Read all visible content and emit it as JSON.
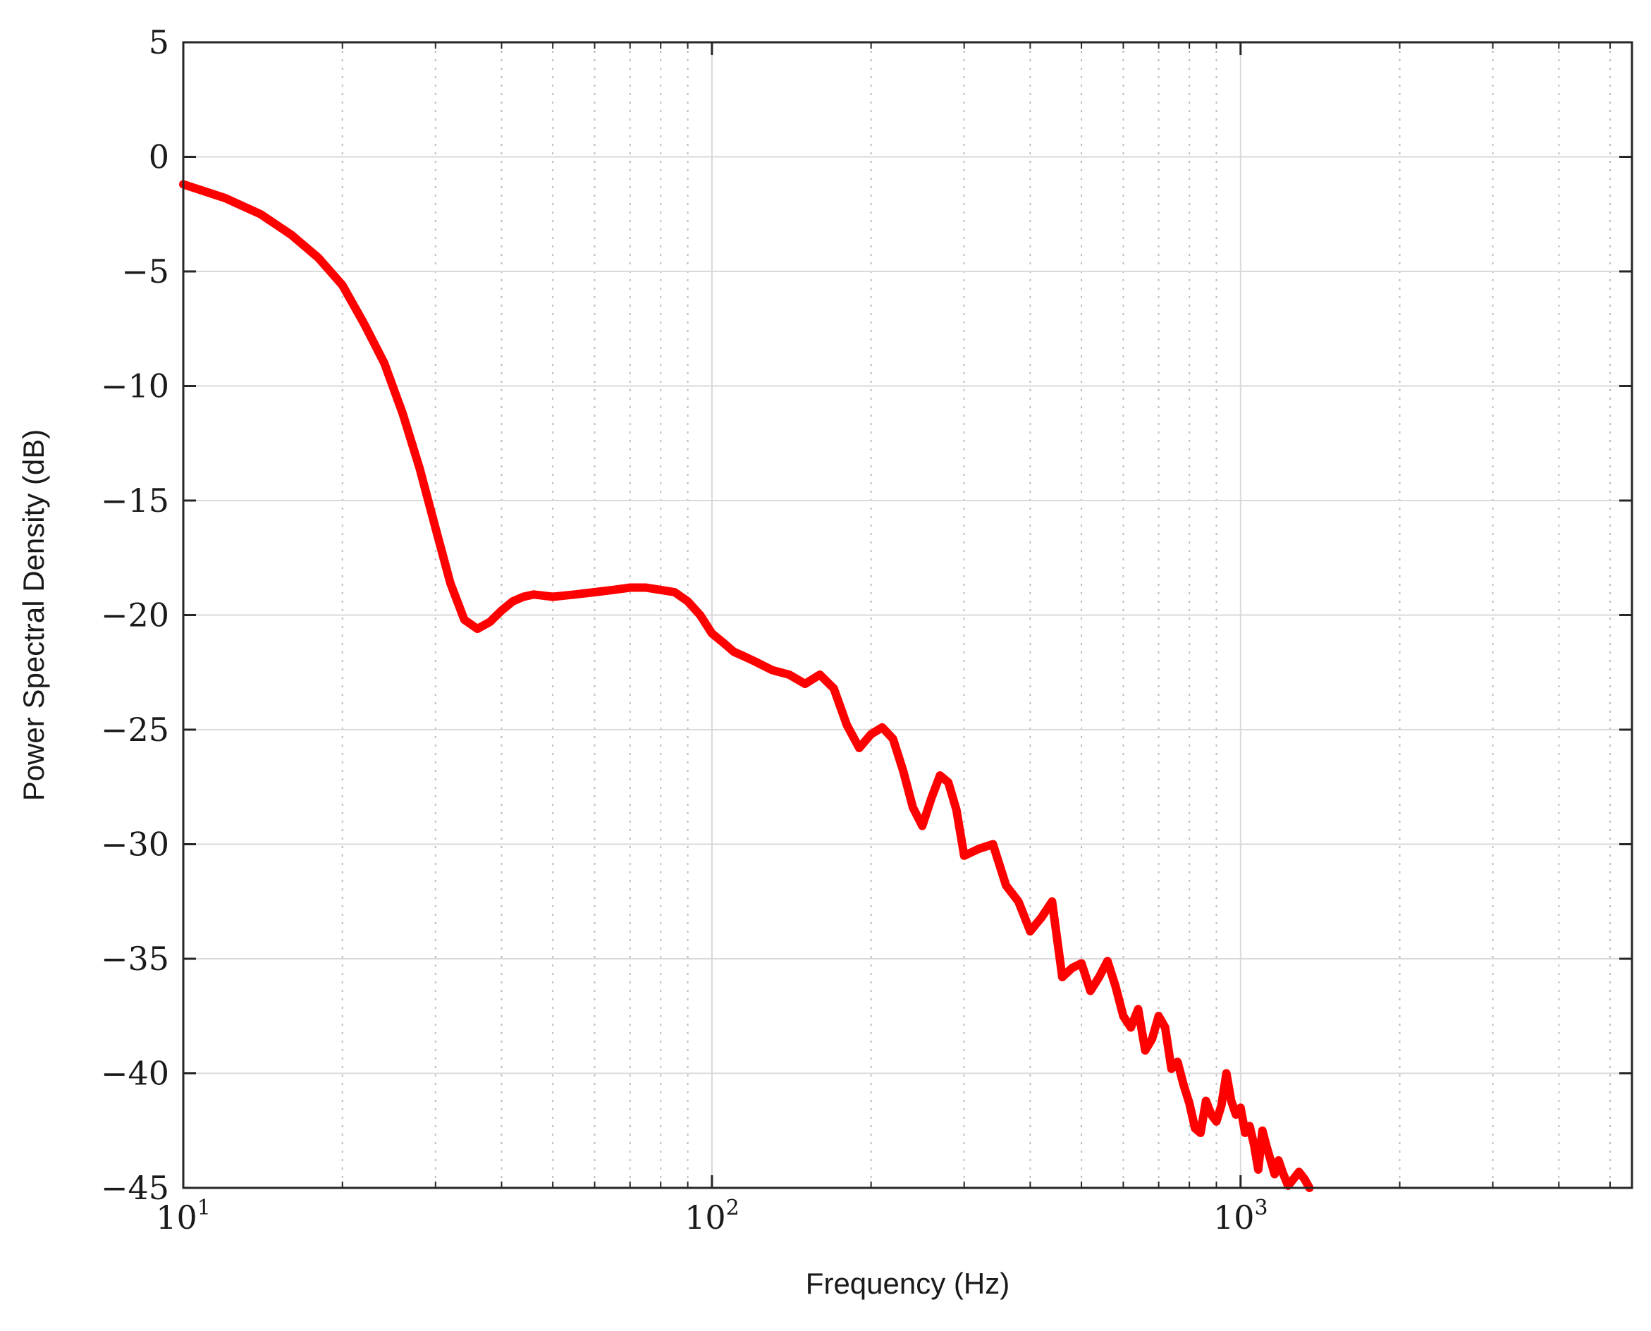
{
  "chart_data": {
    "type": "line",
    "xscale": "log",
    "xlim": [
      10,
      5500
    ],
    "ylim": [
      -45,
      5
    ],
    "xlabel": "Frequency (Hz)",
    "ylabel": "Power Spectral Density (dB)",
    "grid": true,
    "x_ticks": [
      10,
      100,
      1000
    ],
    "x_tick_labels": [
      {
        "base": "10",
        "exp": "1"
      },
      {
        "base": "10",
        "exp": "2"
      },
      {
        "base": "10",
        "exp": "3"
      }
    ],
    "y_ticks": [
      5,
      0,
      -5,
      -10,
      -15,
      -20,
      -25,
      -30,
      -35,
      -40,
      -45
    ],
    "y_tick_labels": [
      "5",
      "0",
      "−5",
      "−10",
      "−15",
      "−20",
      "−25",
      "−30",
      "−35",
      "−40",
      "−45"
    ],
    "series": [
      {
        "color": "#ff0000",
        "x": [
          10,
          12,
          14,
          16,
          18,
          20,
          22,
          24,
          26,
          28,
          30,
          32,
          34,
          36,
          38,
          40,
          42,
          44,
          46,
          50,
          55,
          60,
          65,
          70,
          75,
          80,
          85,
          90,
          95,
          100,
          105,
          110,
          115,
          120,
          130,
          140,
          150,
          160,
          170,
          180,
          190,
          200,
          210,
          220,
          230,
          240,
          250,
          260,
          270,
          280,
          290,
          300,
          320,
          340,
          360,
          380,
          400,
          420,
          440,
          460,
          480,
          500,
          520,
          540,
          560,
          580,
          600,
          620,
          640,
          660,
          680,
          700,
          720,
          740,
          760,
          780,
          800,
          820,
          840,
          860,
          880,
          900,
          920,
          940,
          960,
          980,
          1000,
          1020,
          1040,
          1060,
          1080,
          1100,
          1120,
          1140,
          1160,
          1180,
          1200,
          1230,
          1260,
          1290,
          1320,
          1350
        ],
        "y": [
          -1.2,
          -1.8,
          -2.5,
          -3.4,
          -4.4,
          -5.6,
          -7.3,
          -9.0,
          -11.2,
          -13.6,
          -16.2,
          -18.6,
          -20.2,
          -20.6,
          -20.3,
          -19.8,
          -19.4,
          -19.2,
          -19.1,
          -19.2,
          -19.1,
          -19.0,
          -18.9,
          -18.8,
          -18.8,
          -18.9,
          -19.0,
          -19.4,
          -20.0,
          -20.8,
          -21.2,
          -21.6,
          -21.8,
          -22.0,
          -22.4,
          -22.6,
          -23.0,
          -22.6,
          -23.2,
          -24.8,
          -25.8,
          -25.2,
          -24.9,
          -25.4,
          -26.8,
          -28.4,
          -29.2,
          -28.0,
          -27.0,
          -27.3,
          -28.5,
          -30.5,
          -30.2,
          -30.0,
          -31.8,
          -32.5,
          -33.8,
          -33.2,
          -32.5,
          -35.8,
          -35.4,
          -35.2,
          -36.4,
          -35.8,
          -35.1,
          -36.2,
          -37.5,
          -38.0,
          -37.2,
          -39.0,
          -38.5,
          -37.5,
          -38.0,
          -39.8,
          -39.5,
          -40.5,
          -41.3,
          -42.4,
          -42.6,
          -41.2,
          -41.8,
          -42.1,
          -41.4,
          -40.0,
          -41.2,
          -41.8,
          -41.5,
          -42.6,
          -42.3,
          -43.1,
          -44.2,
          -42.5,
          -43.2,
          -43.8,
          -44.4,
          -43.8,
          -44.3,
          -44.9,
          -44.6,
          -44.3,
          -44.6,
          -45.0
        ]
      }
    ]
  }
}
